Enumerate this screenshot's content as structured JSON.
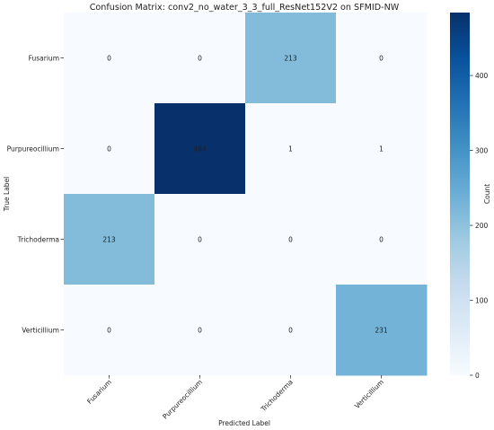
{
  "chart_data": {
    "type": "heatmap",
    "title": "Confusion Matrix: conv2_no_water_3_3_full_ResNet152V2 on SFMID-NW",
    "xlabel": "Predicted Label",
    "ylabel": "True Label",
    "row_labels": [
      "Fusarium",
      "Purpureocillium",
      "Trichoderma",
      "Verticillium"
    ],
    "col_labels": [
      "Fusarium",
      "Purpureocillium",
      "Trichoderma",
      "Verticillium"
    ],
    "matrix": [
      [
        0,
        0,
        213,
        0
      ],
      [
        0,
        484,
        1,
        1
      ],
      [
        213,
        0,
        0,
        0
      ],
      [
        0,
        0,
        0,
        231
      ]
    ],
    "colorbar": {
      "label": "Count",
      "min": 0,
      "max": 484,
      "ticks": [
        0,
        100,
        200,
        300,
        400
      ],
      "colormap": "Blues"
    },
    "colors": {
      "low": "#f7fbff",
      "high": "#08306b"
    }
  }
}
